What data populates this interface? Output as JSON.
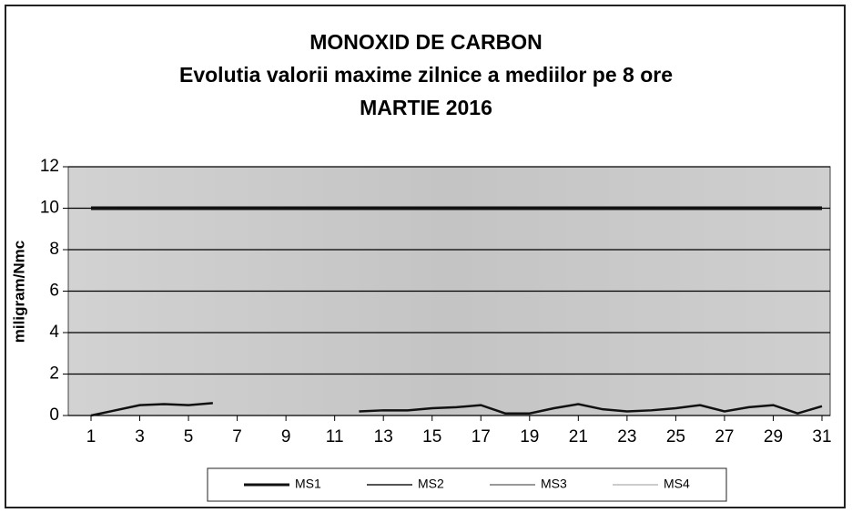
{
  "chart_data": {
    "type": "line",
    "title": [
      "MONOXID DE CARBON",
      "Evolutia valorii maxime zilnice a mediilor pe 8 ore",
      "MARTIE 2016"
    ],
    "y_label": "miligram/Nmc",
    "x": [
      1,
      2,
      3,
      4,
      5,
      6,
      7,
      8,
      9,
      10,
      11,
      12,
      13,
      14,
      15,
      16,
      17,
      18,
      19,
      20,
      21,
      22,
      23,
      24,
      25,
      26,
      27,
      28,
      29,
      30,
      31
    ],
    "xlim": [
      1,
      31
    ],
    "xticks": [
      1,
      3,
      5,
      7,
      9,
      11,
      13,
      15,
      17,
      19,
      21,
      23,
      25,
      27,
      29,
      31
    ],
    "ylim": [
      0,
      12
    ],
    "yticks": [
      0,
      2,
      4,
      6,
      8,
      10,
      12
    ],
    "grid": true,
    "reference_line": 10,
    "series": [
      {
        "name": "MS1",
        "color": "#111111",
        "values": [
          0,
          0.25,
          0.5,
          0.55,
          0.5,
          0.6,
          null,
          null,
          null,
          null,
          null,
          0.2,
          0.25,
          0.25,
          0.35,
          0.4,
          0.5,
          0.1,
          0.1,
          0.35,
          0.55,
          0.3,
          0.2,
          0.25,
          0.35,
          0.5,
          0.2,
          0.4,
          0.5,
          0.1,
          0.45
        ]
      },
      {
        "name": "MS2",
        "color": "#555555",
        "values": [
          null,
          null,
          null,
          null,
          null,
          null,
          null,
          null,
          null,
          null,
          null,
          null,
          null,
          null,
          null,
          null,
          null,
          null,
          null,
          null,
          null,
          null,
          null,
          null,
          null,
          null,
          null,
          null,
          null,
          null,
          null
        ]
      },
      {
        "name": "MS3",
        "color": "#999999",
        "values": [
          null,
          null,
          null,
          null,
          null,
          null,
          null,
          null,
          null,
          null,
          null,
          null,
          null,
          null,
          null,
          null,
          null,
          null,
          null,
          null,
          null,
          null,
          null,
          null,
          null,
          null,
          null,
          null,
          null,
          null,
          null
        ]
      },
      {
        "name": "MS4",
        "color": "#cccccc",
        "values": [
          null,
          null,
          null,
          null,
          null,
          null,
          null,
          null,
          null,
          null,
          null,
          null,
          null,
          null,
          null,
          null,
          null,
          null,
          null,
          null,
          null,
          null,
          null,
          null,
          null,
          null,
          null,
          null,
          null,
          null,
          null
        ]
      }
    ],
    "legend": "bottom"
  }
}
